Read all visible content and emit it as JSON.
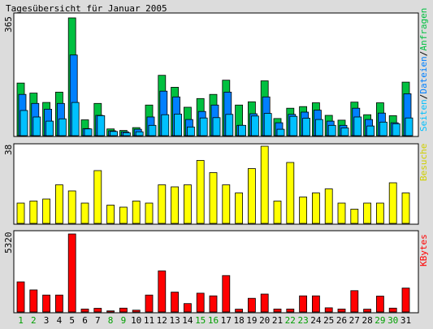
{
  "title": "Tagesübersicht für Januar 2005",
  "colors": {
    "background": "#dcdcdc",
    "panel": "#ffffff",
    "green": "#00c040",
    "blue": "#0080ff",
    "cyan": "#00c0ff",
    "yellow": "#ffff00",
    "red": "#ff0000",
    "weekend_label": "#00a000",
    "weekday_label": "#000000"
  },
  "chart_data": [
    {
      "type": "bar",
      "name": "seiten-dateien-anfragen",
      "ymax_label": "365",
      "ylim": [
        0,
        365
      ],
      "legend": {
        "seiten": "Seiten",
        "sep1": "/",
        "dateien": "Dateien",
        "sep2": "/",
        "anfragen": "Anfragen"
      },
      "categories": [
        "1",
        "2",
        "3",
        "4",
        "5",
        "6",
        "7",
        "8",
        "9",
        "10",
        "11",
        "12",
        "13",
        "14",
        "15",
        "16",
        "17",
        "18",
        "19",
        "20",
        "21",
        "22",
        "23",
        "24",
        "25",
        "26",
        "27",
        "28",
        "29",
        "30",
        "31"
      ],
      "series": [
        {
          "name": "Anfragen",
          "values": [
            163,
            132,
            103,
            135,
            365,
            49,
            100,
            21,
            16,
            25,
            95,
            187,
            150,
            88,
            115,
            128,
            172,
            95,
            105,
            170,
            53,
            85,
            90,
            102,
            63,
            48,
            104,
            65,
            102,
            62,
            166
          ]
        },
        {
          "name": "Dateien",
          "values": [
            128,
            100,
            82,
            100,
            250,
            22,
            63,
            15,
            12,
            20,
            58,
            138,
            120,
            50,
            75,
            95,
            135,
            32,
            68,
            120,
            40,
            66,
            73,
            79,
            45,
            32,
            85,
            50,
            70,
            40,
            130
          ]
        },
        {
          "name": "Seiten",
          "values": [
            78,
            58,
            45,
            52,
            103,
            21,
            62,
            13,
            9,
            12,
            32,
            65,
            67,
            27,
            55,
            56,
            66,
            32,
            61,
            69,
            20,
            60,
            54,
            50,
            32,
            24,
            58,
            30,
            42,
            37,
            55
          ]
        }
      ]
    },
    {
      "type": "bar",
      "name": "besuche",
      "ymax_label": "38",
      "ylim": [
        0,
        38
      ],
      "legend": "Besuche",
      "categories": [
        "1",
        "2",
        "3",
        "4",
        "5",
        "6",
        "7",
        "8",
        "9",
        "10",
        "11",
        "12",
        "13",
        "14",
        "15",
        "16",
        "17",
        "18",
        "19",
        "20",
        "21",
        "22",
        "23",
        "24",
        "25",
        "26",
        "27",
        "28",
        "29",
        "30",
        "31"
      ],
      "series": [
        {
          "name": "Besuche",
          "values": [
            10,
            11,
            12,
            19,
            16,
            10,
            26,
            9,
            8,
            11,
            10,
            19,
            18,
            19,
            31,
            25,
            19,
            15,
            27,
            38,
            11,
            30,
            13,
            15,
            17,
            10,
            7,
            10,
            10,
            20,
            15
          ]
        }
      ]
    },
    {
      "type": "bar",
      "name": "kbytes",
      "ymax_label": "5320",
      "ylim": [
        0,
        5320
      ],
      "legend": "KBytes",
      "categories": [
        "1",
        "2",
        "3",
        "4",
        "5",
        "6",
        "7",
        "8",
        "9",
        "10",
        "11",
        "12",
        "13",
        "14",
        "15",
        "16",
        "17",
        "18",
        "19",
        "20",
        "21",
        "22",
        "23",
        "24",
        "25",
        "26",
        "27",
        "28",
        "29",
        "30",
        "31"
      ],
      "weekend_days": [
        1,
        2,
        8,
        9,
        15,
        16,
        22,
        23,
        29,
        30
      ],
      "series": [
        {
          "name": "KBytes",
          "values": [
            2050,
            1500,
            1150,
            1150,
            5320,
            200,
            250,
            70,
            260,
            120,
            1150,
            2800,
            1350,
            570,
            1280,
            1100,
            2480,
            190,
            930,
            1220,
            200,
            200,
            1100,
            1100,
            280,
            200,
            1450,
            190,
            1080,
            260,
            1630
          ]
        }
      ]
    }
  ]
}
